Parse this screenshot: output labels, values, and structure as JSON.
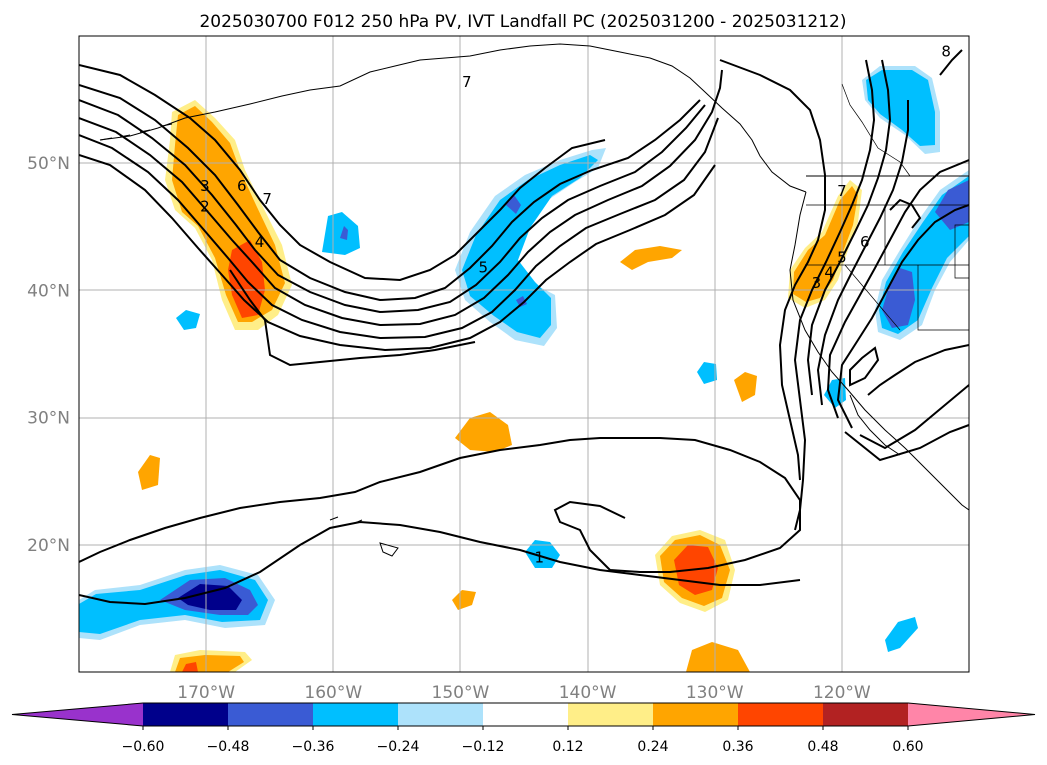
{
  "title": "2025030700 F012 250 hPa PV, IVT Landfall PC (2025031200 - 2025031212)",
  "map": {
    "lon_range": [
      -180,
      -110
    ],
    "lat_range": [
      10,
      60
    ],
    "lon_ticks": [
      {
        "value": -170,
        "label": "170°W"
      },
      {
        "value": -160,
        "label": "160°W"
      },
      {
        "value": -150,
        "label": "150°W"
      },
      {
        "value": -140,
        "label": "140°W"
      },
      {
        "value": -130,
        "label": "130°W"
      },
      {
        "value": -120,
        "label": "120°W"
      }
    ],
    "lat_ticks": [
      {
        "value": 50,
        "label": "50°N"
      },
      {
        "value": 40,
        "label": "40°N"
      },
      {
        "value": 30,
        "label": "30°N"
      },
      {
        "value": 20,
        "label": "20°N"
      }
    ],
    "gridlines": true
  },
  "contour_labels": [
    {
      "text": "7",
      "lon": -149.5,
      "lat": 56.4
    },
    {
      "text": "3",
      "lon": -170.1,
      "lat": 48.2
    },
    {
      "text": "6",
      "lon": -167.2,
      "lat": 48.2
    },
    {
      "text": "7",
      "lon": -165.2,
      "lat": 47.2
    },
    {
      "text": "2",
      "lon": -170.1,
      "lat": 46.6
    },
    {
      "text": "4",
      "lon": -165.8,
      "lat": 43.8
    },
    {
      "text": "5",
      "lon": -148.2,
      "lat": 41.8
    },
    {
      "text": "7",
      "lon": -120.0,
      "lat": 47.8
    },
    {
      "text": "6",
      "lon": -118.2,
      "lat": 43.8
    },
    {
      "text": "5",
      "lon": -120.0,
      "lat": 42.6
    },
    {
      "text": "4",
      "lon": -121.0,
      "lat": 41.4
    },
    {
      "text": "3",
      "lon": -122.0,
      "lat": 40.6
    },
    {
      "text": "1",
      "lon": -143.8,
      "lat": 19.0
    },
    {
      "text": "8",
      "lon": -111.8,
      "lat": 58.8
    }
  ],
  "colorbar": {
    "ticks": [
      "−0.60",
      "−0.48",
      "−0.36",
      "−0.24",
      "−0.12",
      "0.12",
      "0.24",
      "0.36",
      "0.48",
      "0.60"
    ],
    "bins": [
      {
        "color": "#9932CC"
      },
      {
        "color": "#00008B"
      },
      {
        "color": "#3A5BD4"
      },
      {
        "color": "#00BFFF"
      },
      {
        "color": "#ADE2FB"
      },
      {
        "color": "#FFFFFF"
      },
      {
        "color": "#FFEE88"
      },
      {
        "color": "#FFA500"
      },
      {
        "color": "#FF4500"
      },
      {
        "color": "#B22222"
      },
      {
        "color": "#FF85A8"
      }
    ]
  }
}
